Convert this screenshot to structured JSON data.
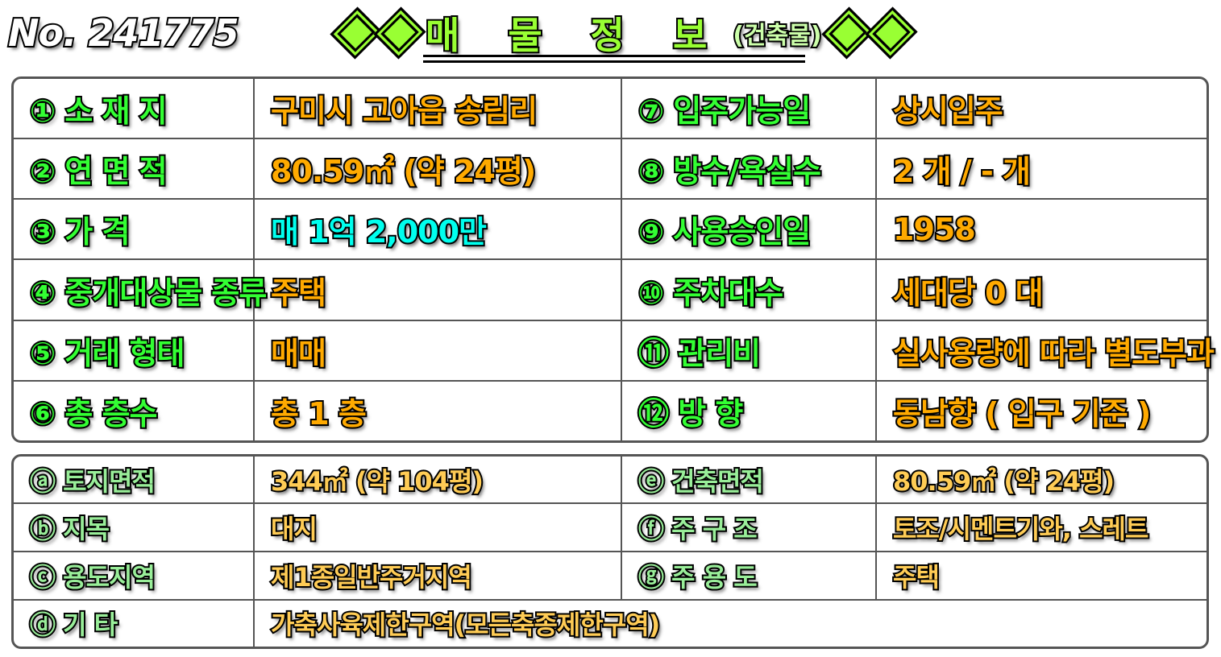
{
  "header": {
    "number": "No. 241775",
    "title": "매 물 정 보",
    "subtitle": "(건축물)"
  },
  "colors": {
    "label_main": "#33ff33",
    "value_main": "#ffaa00",
    "price": "#00ffee",
    "label_sub": "#99ee99",
    "value_sub": "#ffcc55",
    "title": "#99ff33"
  },
  "main_rows": [
    {
      "l1": "① 소 재 지",
      "v1": "구미시 고아읍 송림리",
      "l2": "⑦ 입주가능일",
      "v2": "상시입주"
    },
    {
      "l1": "② 연 면 적",
      "v1": "80.59㎡ (약 24평)",
      "l2": "⑧ 방수/욕실수",
      "v2": "2 개 / - 개"
    },
    {
      "l1": "③ 가 격",
      "v1": "매 1억 2,000만",
      "l2": "⑨ 사용승인일",
      "v2": "1958"
    },
    {
      "l1": "④ 중개대상물 종류",
      "v1": "주택",
      "l2": "⑩ 주차대수",
      "v2": "세대당 0 대"
    },
    {
      "l1": "⑤ 거래 형태",
      "v1": "매매",
      "l2": "⑪ 관리비",
      "v2": "실사용량에 따라 별도부과"
    },
    {
      "l1": "⑥ 총 층수",
      "v1": "총 1 층",
      "l2": "⑫ 방 향",
      "v2": "동남향 ( 입구 기준 )"
    }
  ],
  "sub_rows": [
    {
      "l1": "ⓐ 토지면적",
      "v1": "344㎡ (약 104평)",
      "l2": "ⓔ 건축면적",
      "v2": "80.59㎡ (약 24평)"
    },
    {
      "l1": "ⓑ 지목",
      "v1": "대지",
      "l2": "ⓕ 주 구 조",
      "v2": "토조/시멘트기와, 스레트"
    },
    {
      "l1": "ⓒ 용도지역",
      "v1": "제1종일반주거지역",
      "l2": "ⓖ 주 용 도",
      "v2": "주택"
    },
    {
      "l1": "ⓓ 기 타",
      "v1": "가축사육제한구역(모든축종제한구역)"
    }
  ]
}
